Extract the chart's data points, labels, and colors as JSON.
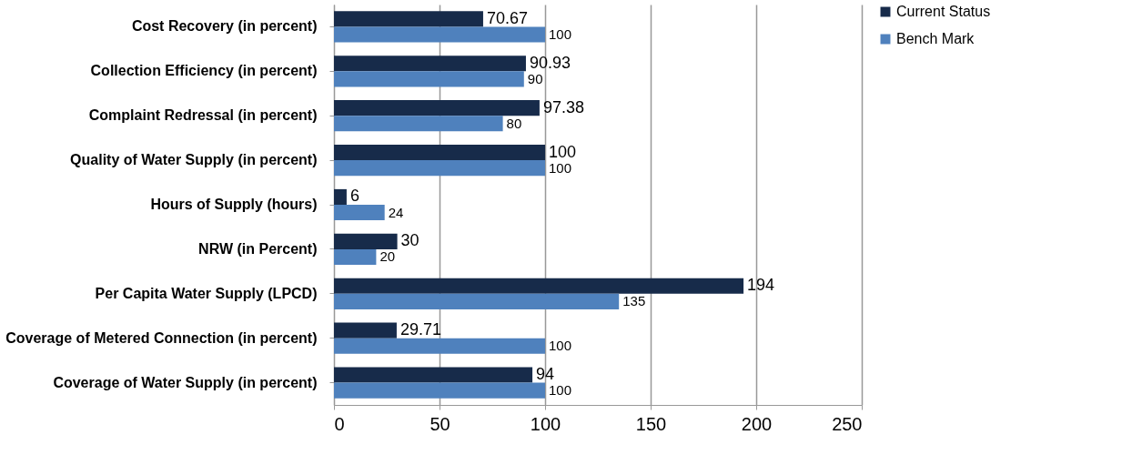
{
  "chart_data": {
    "type": "bar",
    "orientation": "horizontal",
    "categories": [
      "Cost Recovery (in percent)",
      "Collection Efficiency (in percent)",
      "Complaint Redressal (in percent)",
      "Quality of Water Supply  (in percent)",
      "Hours of Supply  (hours)",
      "NRW (in Percent)",
      "Per Capita  Water Supply (LPCD)",
      "Coverage of Metered Connection (in percent)",
      "Coverage of Water Supply (in percent)"
    ],
    "series": [
      {
        "name": "Current Status",
        "color": "#172b4a",
        "values": [
          70.67,
          90.93,
          97.38,
          100,
          6,
          30,
          194,
          29.71,
          94
        ]
      },
      {
        "name": "Bench Mark",
        "color": "#4f81bd",
        "values": [
          100,
          90,
          80,
          100,
          24,
          20,
          135,
          100,
          100
        ]
      }
    ],
    "xlim": [
      0,
      250
    ],
    "xticks": [
      0,
      50,
      100,
      150,
      200,
      250
    ],
    "grid": "x",
    "legend": "right",
    "data_labels": true
  }
}
